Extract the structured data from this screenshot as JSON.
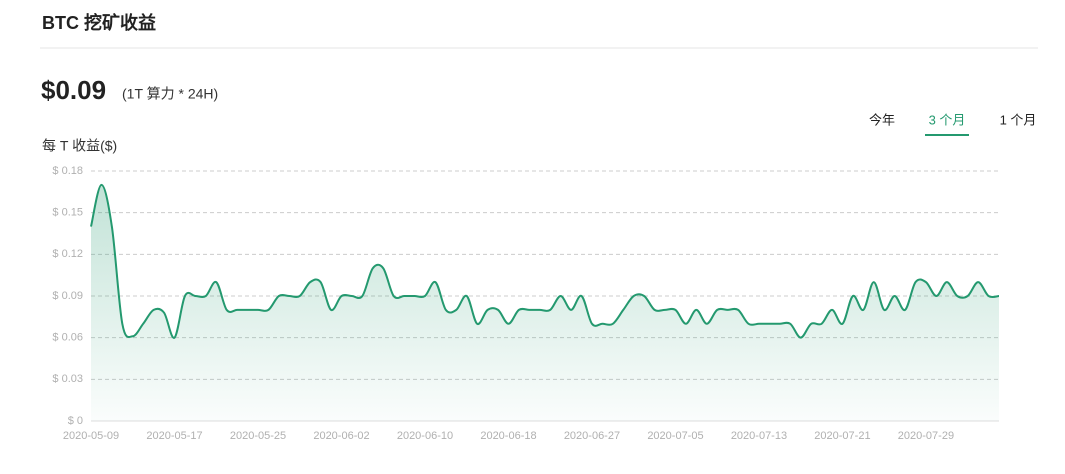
{
  "header": {
    "title": "BTC 挖矿收益"
  },
  "summary": {
    "value": "$0.09",
    "note": "(1T 算力 * 24H)"
  },
  "tabs": [
    "今年",
    "3 个月",
    "1 个月"
  ],
  "active_tab": 1,
  "chart_data": {
    "type": "area",
    "y_label": "每 T 收益($)",
    "color": "#24996f",
    "grid": true,
    "ylim": [
      0,
      0.18
    ],
    "yticks": [
      {
        "value": 0,
        "label": "$ 0"
      },
      {
        "value": 0.03,
        "label": "$ 0.03"
      },
      {
        "value": 0.06,
        "label": "$ 0.06"
      },
      {
        "value": 0.09,
        "label": "$ 0.09"
      },
      {
        "value": 0.12,
        "label": "$ 0.12"
      },
      {
        "value": 0.15,
        "label": "$ 0.15"
      },
      {
        "value": 0.18,
        "label": "$ 0.18"
      }
    ],
    "categories": [
      "2020-05-09",
      null,
      null,
      null,
      null,
      null,
      null,
      null,
      "2020-05-17",
      null,
      null,
      null,
      null,
      null,
      null,
      null,
      "2020-05-25",
      null,
      null,
      null,
      null,
      null,
      null,
      null,
      "2020-06-02",
      null,
      null,
      null,
      null,
      null,
      null,
      null,
      "2020-06-10",
      null,
      null,
      null,
      null,
      null,
      null,
      null,
      "2020-06-18",
      null,
      null,
      null,
      null,
      null,
      null,
      null,
      "2020-06-27",
      null,
      null,
      null,
      null,
      null,
      null,
      null,
      "2020-07-05",
      null,
      null,
      null,
      null,
      null,
      null,
      null,
      "2020-07-13",
      null,
      null,
      null,
      null,
      null,
      null,
      null,
      "2020-07-21",
      null,
      null,
      null,
      null,
      null,
      null,
      null,
      "2020-07-29",
      null,
      null,
      null,
      null,
      null,
      null,
      null
    ],
    "values": [
      0.14,
      0.17,
      0.14,
      0.07,
      0.061,
      0.07,
      0.08,
      0.078,
      0.06,
      0.09,
      0.09,
      0.09,
      0.1,
      0.08,
      0.08,
      0.08,
      0.08,
      0.08,
      0.09,
      0.09,
      0.09,
      0.1,
      0.1,
      0.08,
      0.09,
      0.09,
      0.09,
      0.11,
      0.11,
      0.09,
      0.09,
      0.09,
      0.09,
      0.1,
      0.08,
      0.08,
      0.09,
      0.07,
      0.08,
      0.08,
      0.07,
      0.08,
      0.08,
      0.08,
      0.08,
      0.09,
      0.08,
      0.09,
      0.07,
      0.07,
      0.07,
      0.08,
      0.09,
      0.09,
      0.08,
      0.08,
      0.08,
      0.07,
      0.08,
      0.07,
      0.08,
      0.08,
      0.08,
      0.07,
      0.07,
      0.07,
      0.07,
      0.07,
      0.06,
      0.07,
      0.07,
      0.08,
      0.07,
      0.09,
      0.08,
      0.1,
      0.08,
      0.09,
      0.08,
      0.1,
      0.1,
      0.09,
      0.1,
      0.09,
      0.09,
      0.1,
      0.09,
      0.09
    ]
  }
}
